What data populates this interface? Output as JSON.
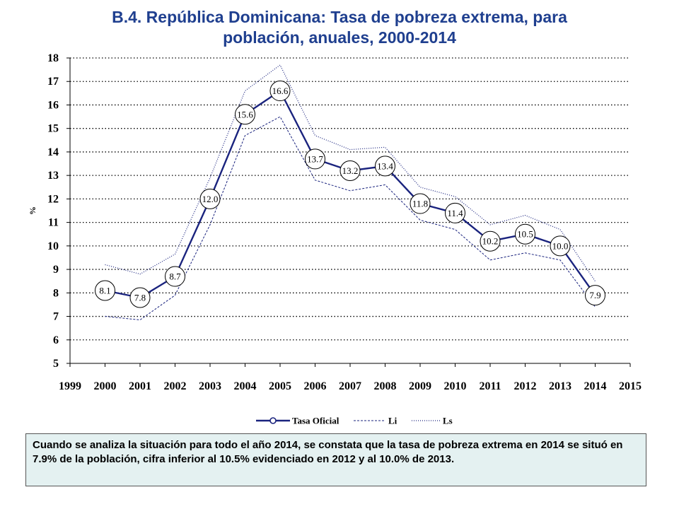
{
  "title_line1": "B.4. República Dominicana: Tasa de pobreza extrema, para",
  "title_line2": "población, anuales, 2000-2014",
  "note": "Cuando se analiza la situación para todo el año 2014, se constata que la tasa de pobreza extrema en 2014 se situó en 7.9% de la población, cifra inferior al 10.5% evidenciado en 2012 y al 10.0% de 2013.",
  "chart_data": {
    "type": "line",
    "title": "B.4. República Dominicana: Tasa de pobreza extrema, para población, anuales, 2000-2014",
    "ylabel": "%",
    "xlabel": "",
    "xlim": [
      1999,
      2015
    ],
    "ylim": [
      5,
      18
    ],
    "x_ticks": [
      1999,
      2000,
      2001,
      2002,
      2003,
      2004,
      2005,
      2006,
      2007,
      2008,
      2009,
      2010,
      2011,
      2012,
      2013,
      2014,
      2015
    ],
    "y_ticks": [
      5,
      6,
      7,
      8,
      9,
      10,
      11,
      12,
      13,
      14,
      15,
      16,
      17,
      18
    ],
    "grid": "horizontal dotted",
    "legend_position": "bottom",
    "x": [
      2000,
      2001,
      2002,
      2003,
      2004,
      2005,
      2006,
      2007,
      2008,
      2009,
      2010,
      2011,
      2012,
      2013,
      2014
    ],
    "series": [
      {
        "name": "Tasa Oficial",
        "color": "#1a237e",
        "style": "solid-markers",
        "labels": [
          "8.1",
          "7.8",
          "8.7",
          "12.0",
          "15.6",
          "16.6",
          "13.7",
          "13.2",
          "13.4",
          "11.8",
          "11.4",
          "10.2",
          "10.5",
          "10.0",
          "7.9"
        ],
        "values": [
          8.1,
          7.8,
          8.7,
          12.0,
          15.6,
          16.6,
          13.7,
          13.2,
          13.4,
          11.8,
          11.4,
          10.2,
          10.5,
          10.0,
          7.9
        ]
      },
      {
        "name": "Li",
        "color": "#1a237e",
        "style": "dashed",
        "values": [
          7.0,
          6.85,
          7.9,
          10.9,
          14.7,
          15.5,
          12.8,
          12.35,
          12.6,
          11.1,
          10.7,
          9.4,
          9.7,
          9.4,
          7.4
        ]
      },
      {
        "name": "Ls",
        "color": "#1a237e",
        "style": "dotted",
        "values": [
          9.2,
          8.8,
          9.65,
          12.9,
          16.6,
          17.7,
          14.7,
          14.1,
          14.2,
          12.5,
          12.1,
          10.9,
          11.3,
          10.7,
          8.5
        ]
      }
    ]
  }
}
